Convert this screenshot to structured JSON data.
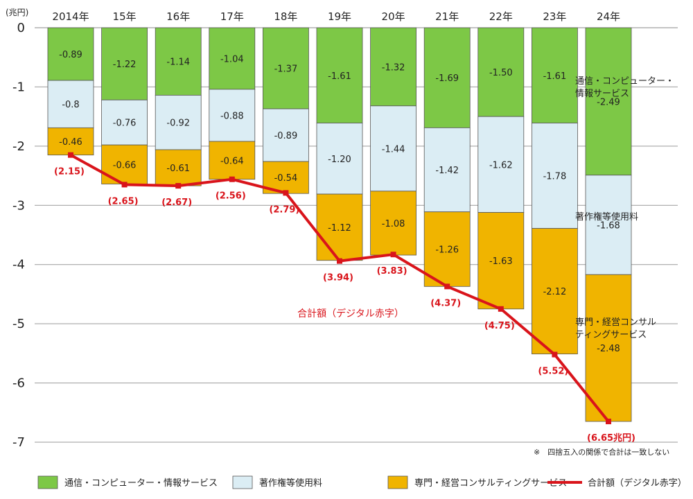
{
  "chart_data": {
    "type": "bar",
    "stacked": true,
    "unit": "(兆円)",
    "categories": [
      "2014年",
      "15年",
      "16年",
      "17年",
      "18年",
      "19年",
      "20年",
      "21年",
      "22年",
      "23年",
      "24年"
    ],
    "series": [
      {
        "name": "通信・コンピューター・情報サービス",
        "color": "#7dc846",
        "values": [
          -0.89,
          -1.22,
          -1.14,
          -1.04,
          -1.37,
          -1.61,
          -1.32,
          -1.69,
          -1.5,
          -1.61,
          -2.49
        ],
        "labels": [
          "-0.89",
          "-1.22",
          "-1.14",
          "-1.04",
          "-1.37",
          "-1.61",
          "-1.32",
          "-1.69",
          "-1.50",
          "-1.61",
          "-2.49"
        ]
      },
      {
        "name": "著作権等使用料",
        "color": "#dbedf4",
        "values": [
          -0.8,
          -0.76,
          -0.92,
          -0.88,
          -0.89,
          -1.2,
          -1.44,
          -1.42,
          -1.62,
          -1.78,
          -1.68
        ],
        "labels": [
          "-0.8",
          "-0.76",
          "-0.92",
          "-0.88",
          "-0.89",
          "-1.20",
          "-1.44",
          "-1.42",
          "-1.62",
          "-1.78",
          "-1.68"
        ]
      },
      {
        "name": "専門・経営コンサルティングサービス",
        "color": "#f0b400",
        "values": [
          -0.46,
          -0.66,
          -0.61,
          -0.64,
          -0.54,
          -1.12,
          -1.08,
          -1.26,
          -1.63,
          -2.12,
          -2.48
        ],
        "labels": [
          "-0.46",
          "-0.66",
          "-0.61",
          "-0.64",
          "-0.54",
          "-1.12",
          "-1.08",
          "-1.26",
          "-1.63",
          "-2.12",
          "-2.48"
        ]
      }
    ],
    "total": {
      "name": "合計額（デジタル赤字）",
      "color": "#d9141b",
      "values": [
        -2.15,
        -2.65,
        -2.67,
        -2.56,
        -2.79,
        -3.94,
        -3.83,
        -4.37,
        -4.75,
        -5.52,
        -6.65
      ],
      "labels": [
        "(2.15)",
        "(2.65)",
        "(2.67)",
        "(2.56)",
        "(2.79)",
        "(3.94)",
        "(3.83)",
        "(4.37)",
        "(4.75)",
        "(5.52)",
        "(6.65兆円)"
      ]
    },
    "ylim": [
      -7,
      0
    ],
    "yticks": [
      0,
      -1,
      -2,
      -3,
      -4,
      -5,
      -6,
      -7
    ],
    "ytick_labels": [
      "0",
      "-1",
      "-2",
      "-3",
      "-4",
      "-5",
      "-6",
      "-7"
    ],
    "grid": true,
    "annotations": {
      "series0": [
        "通信・コンピューター・",
        "情報サービス"
      ],
      "series1": [
        "著作権等使用料"
      ],
      "series2": [
        "専門・経営コンサル",
        "ティングサービス"
      ],
      "total": "合計額（デジタル赤字）"
    },
    "note": "※　四捨五入の関係で合計は一致しない",
    "legend": {
      "position": "bottom",
      "items": [
        "通信・コンピューター・情報サービス",
        "著作権等使用料",
        "専門・経営コンサルティングサービス",
        "合計額（デジタル赤字）"
      ]
    }
  }
}
